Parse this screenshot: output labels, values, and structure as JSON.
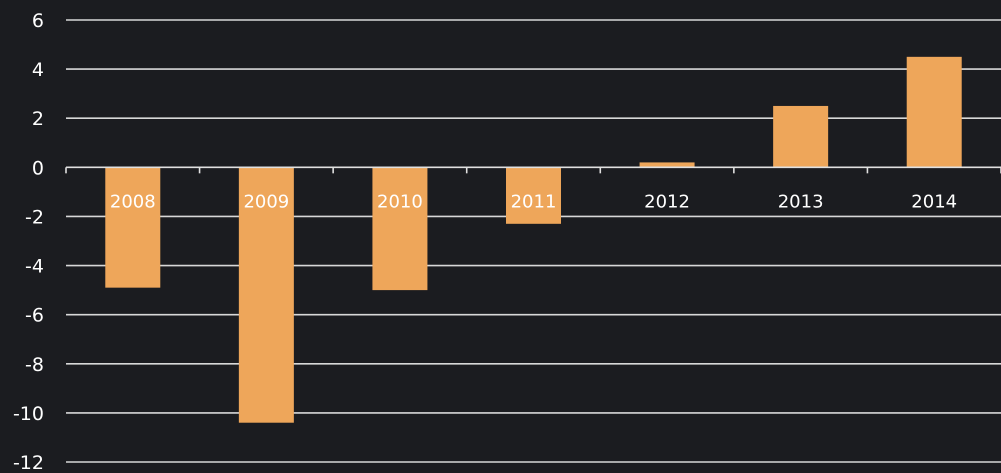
{
  "chart_data": {
    "type": "bar",
    "categories": [
      "2008",
      "2009",
      "2010",
      "2011",
      "2012",
      "2013",
      "2014"
    ],
    "values": [
      -4.9,
      -10.4,
      -5.0,
      -2.3,
      0.2,
      2.5,
      4.5
    ],
    "ylim": [
      -12,
      6
    ],
    "yticks": [
      "6",
      "4",
      "2",
      "0",
      "-2",
      "-4",
      "-6",
      "-8",
      "-10",
      "-12"
    ],
    "grid": true,
    "colors": {
      "background": "#1b1c20",
      "bar": "#eea65a",
      "grid": "#d8d8d8",
      "text": "#ffffff"
    }
  }
}
